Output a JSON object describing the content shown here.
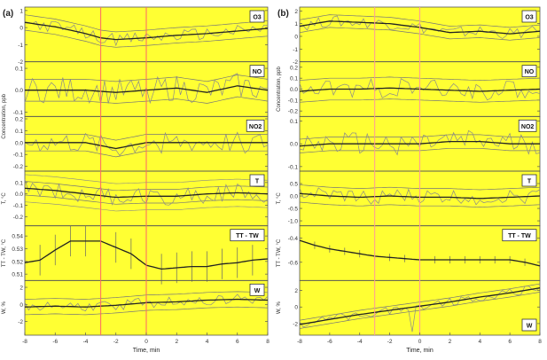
{
  "chart_data": [
    {
      "type": "line",
      "panel_label": "(a)",
      "xlabel": "Time, min",
      "xlim": [
        -8,
        8
      ],
      "x_ticks": [
        -8,
        -6,
        -4,
        -2,
        0,
        2,
        4,
        6,
        8
      ],
      "shared_ylabel": "Concentration, ppb",
      "vertical_markers": [
        -3,
        0
      ],
      "vertical_marker_color": "#ff6666",
      "subplots": [
        {
          "label": "O3",
          "ylabel": "",
          "ylim": [
            -2,
            1.2
          ],
          "y_ticks": [
            "1",
            "0",
            "-1",
            "-2"
          ],
          "y_tick_values": [
            1,
            0,
            -1,
            -2
          ],
          "noisy": true,
          "noise": 0.35,
          "band": 0.45,
          "mean_x": [
            -8,
            -6,
            -4,
            -3,
            -2,
            0,
            2,
            4,
            6,
            8
          ],
          "mean_y": [
            0.3,
            0.05,
            -0.35,
            -0.6,
            -0.7,
            -0.6,
            -0.45,
            -0.35,
            -0.2,
            -0.05
          ]
        },
        {
          "label": "NO",
          "ylabel": "",
          "ylim": [
            -0.12,
            0.13
          ],
          "y_ticks": [
            "0.1",
            "0.0",
            "-0.1"
          ],
          "y_tick_values": [
            0.1,
            0.0,
            -0.1
          ],
          "noisy": true,
          "noise": 0.06,
          "band": 0.05,
          "mean_x": [
            -8,
            -6,
            -4,
            -2,
            0,
            2,
            4,
            6,
            8
          ],
          "mean_y": [
            0.0,
            0.0,
            0.0,
            -0.01,
            0.0,
            0.01,
            -0.01,
            0.02,
            0.0
          ]
        },
        {
          "label": "NO2",
          "ylabel": "",
          "ylim": [
            -0.24,
            0.22
          ],
          "y_ticks": [
            "0.2",
            "0.1",
            "0.0",
            "-0.1",
            "-0.2"
          ],
          "y_tick_values": [
            0.2,
            0.1,
            0.0,
            -0.1,
            -0.2
          ],
          "noisy": true,
          "noise": 0.09,
          "band": 0.07,
          "mean_x": [
            -8,
            -6,
            -4,
            -2,
            0,
            2,
            4,
            6,
            8
          ],
          "mean_y": [
            0.0,
            0.0,
            0.0,
            -0.05,
            0.0,
            0.0,
            0.0,
            0.0,
            0.0
          ]
        },
        {
          "label": "T",
          "ylabel": "T, °C",
          "ylim": [
            -0.28,
            0.2
          ],
          "y_ticks": [
            "0.1",
            "0.0",
            "-0.1",
            "-0.2"
          ],
          "y_tick_values": [
            0.1,
            0.0,
            -0.1,
            -0.2
          ],
          "noisy": true,
          "noise": 0.08,
          "band": 0.06,
          "mean_x": [
            -8,
            -6,
            -4,
            -2,
            0,
            2,
            4,
            6,
            8
          ],
          "mean_y": [
            0.05,
            0.03,
            0.0,
            -0.03,
            -0.02,
            -0.02,
            0.0,
            0.01,
            0.0
          ],
          "extra_lines": [
            0.12,
            -0.12
          ]
        },
        {
          "label": "TT - TW",
          "ylabel": "TT - TW, °C",
          "ylim": [
            0.505,
            0.548
          ],
          "y_ticks": [
            "0.54",
            "0.53",
            "0.52",
            "0.51"
          ],
          "y_tick_values": [
            0.54,
            0.53,
            0.52,
            0.51
          ],
          "noisy": false,
          "band": 0.0,
          "error_bar": 0.012,
          "mean_x": [
            -8,
            -7,
            -6,
            -5,
            -4,
            -3,
            -2,
            -1,
            0,
            1,
            2,
            3,
            4,
            5,
            6,
            7,
            8
          ],
          "mean_y": [
            0.519,
            0.521,
            0.529,
            0.536,
            0.536,
            0.536,
            0.531,
            0.526,
            0.517,
            0.514,
            0.515,
            0.516,
            0.516,
            0.518,
            0.519,
            0.521,
            0.522
          ]
        },
        {
          "label": "W",
          "ylabel": "W, %",
          "ylim": [
            -3.6,
            2.8
          ],
          "y_ticks": [
            "2",
            "0",
            "-2"
          ],
          "y_tick_values": [
            2,
            0,
            -2
          ],
          "noisy": true,
          "noise": 0.6,
          "band": 0.9,
          "mean_x": [
            -8,
            -6,
            -4,
            -2,
            0,
            2,
            4,
            6,
            8
          ],
          "mean_y": [
            -0.3,
            -0.2,
            -0.3,
            -0.1,
            0.2,
            0.3,
            0.5,
            0.6,
            0.5
          ]
        }
      ]
    },
    {
      "type": "line",
      "panel_label": "(b)",
      "xlabel": "Time, min",
      "xlim": [
        -8,
        8
      ],
      "x_ticks": [
        -8,
        -6,
        -4,
        -2,
        0,
        2,
        4,
        6,
        8
      ],
      "shared_ylabel": "Concentration, ppb",
      "vertical_markers": [
        -3,
        0
      ],
      "vertical_marker_color": "#ff9999",
      "subplots": [
        {
          "label": "O3",
          "ylabel": "",
          "ylim": [
            -2,
            2.3
          ],
          "y_ticks": [
            "2",
            "1",
            "0",
            "-1",
            "-2"
          ],
          "y_tick_values": [
            2,
            1,
            0,
            -1,
            -2
          ],
          "noisy": true,
          "noise": 0.45,
          "band": 0.5,
          "mean_x": [
            -8,
            -6,
            -4,
            -2,
            0,
            2,
            4,
            6,
            8
          ],
          "mean_y": [
            0.8,
            1.2,
            1.1,
            1.0,
            0.7,
            0.3,
            0.4,
            0.2,
            0.4
          ]
        },
        {
          "label": "NO",
          "ylabel": "Concentration, ppb",
          "ylim": [
            -0.25,
            0.25
          ],
          "y_ticks": [
            "0.2",
            "0.1",
            "0.0",
            "-0.1",
            "-0.2"
          ],
          "y_tick_values": [
            0.2,
            0.1,
            0.0,
            -0.1,
            -0.2
          ],
          "noisy": true,
          "noise": 0.09,
          "band": 0.1,
          "mean_x": [
            -8,
            -6,
            -4,
            -2,
            0,
            2,
            4,
            6,
            8
          ],
          "mean_y": [
            -0.02,
            0.0,
            0.0,
            0.01,
            0.0,
            -0.01,
            -0.02,
            -0.01,
            0.0
          ]
        },
        {
          "label": "NO2",
          "ylabel": "",
          "ylim": [
            -0.12,
            0.12
          ],
          "y_ticks": [
            "0.1",
            "0.0",
            "-0.1"
          ],
          "y_tick_values": [
            0.1,
            0.0,
            -0.1
          ],
          "noisy": true,
          "noise": 0.05,
          "band": 0.03,
          "mean_x": [
            -8,
            -6,
            -4,
            -2,
            0,
            2,
            4,
            6,
            8
          ],
          "mean_y": [
            -0.01,
            0.0,
            0.0,
            0.0,
            0.0,
            0.01,
            0.01,
            0.0,
            0.0
          ]
        },
        {
          "label": "T",
          "ylabel": "T, °C",
          "ylim": [
            -1.2,
            1.0
          ],
          "y_ticks": [
            "0.5",
            "0.0",
            "-0.5",
            "-1.0"
          ],
          "y_tick_values": [
            0.5,
            0.0,
            -0.5,
            -1.0
          ],
          "noisy": true,
          "noise": 0.3,
          "band": 0.35,
          "mean_x": [
            -8,
            -6,
            -4,
            -2,
            0,
            2,
            4,
            6,
            8
          ],
          "mean_y": [
            0.1,
            0.0,
            -0.05,
            0.0,
            -0.05,
            -0.05,
            -0.1,
            -0.05,
            0.0
          ]
        },
        {
          "label": "TT - TW",
          "ylabel": "TT - TW, °C",
          "ylim": [
            -0.75,
            -0.3
          ],
          "y_ticks": [
            "-0.4",
            "-0.6"
          ],
          "y_tick_values": [
            -0.4,
            -0.6
          ],
          "noisy": false,
          "band": 0.0,
          "error_bar": 0.03,
          "mean_x": [
            -8,
            -7,
            -6,
            -5,
            -4,
            -3,
            -2,
            -1,
            0,
            1,
            2,
            3,
            4,
            5,
            6,
            7,
            8
          ],
          "mean_y": [
            -0.42,
            -0.46,
            -0.49,
            -0.51,
            -0.53,
            -0.55,
            -0.56,
            -0.57,
            -0.58,
            -0.58,
            -0.58,
            -0.58,
            -0.58,
            -0.58,
            -0.58,
            -0.6,
            -0.63
          ]
        },
        {
          "label": "W",
          "ylabel": "W, %",
          "ylim": [
            -3.4,
            3.2
          ],
          "y_ticks": [
            "2",
            "0",
            "-2"
          ],
          "y_tick_values": [
            2,
            0,
            -2
          ],
          "noisy": true,
          "noise": 0.5,
          "band": 0.5,
          "mean_x": [
            -8,
            -6,
            -4,
            -2,
            0,
            2,
            4,
            6,
            8
          ],
          "mean_y": [
            -2.1,
            -1.5,
            -0.9,
            -0.4,
            0.1,
            0.6,
            1.2,
            1.7,
            2.3
          ],
          "dip": {
            "x": -0.5,
            "y": -3.0
          }
        }
      ]
    }
  ]
}
